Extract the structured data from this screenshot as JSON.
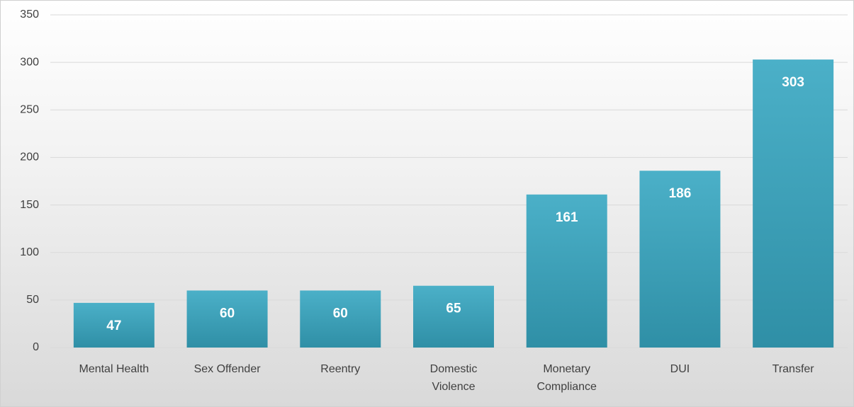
{
  "chart_data": {
    "type": "bar",
    "categories": [
      "Mental Health",
      "Sex Offender",
      "Reentry",
      "Domestic Violence",
      "Monetary Compliance",
      "DUI",
      "Transfer"
    ],
    "values": [
      47,
      60,
      60,
      65,
      161,
      186,
      303
    ],
    "color": "#3a9fb8",
    "ylim": [
      0,
      350
    ],
    "yticks": [
      0,
      50,
      100,
      150,
      200,
      250,
      300,
      350
    ],
    "grid": true
  }
}
